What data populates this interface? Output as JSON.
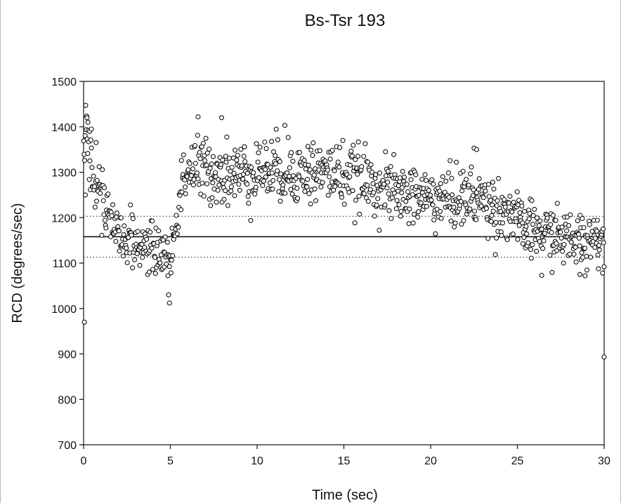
{
  "chart_data": {
    "type": "scatter",
    "title": "Bs-Tsr 193",
    "xlabel": "Time (sec)",
    "ylabel": "RCD (degrees/sec)",
    "xlim": [
      0,
      30
    ],
    "ylim": [
      700,
      1500
    ],
    "xticks": [
      0,
      5,
      10,
      15,
      20,
      25,
      30
    ],
    "yticks": [
      700,
      800,
      900,
      1000,
      1100,
      1200,
      1300,
      1400,
      1500
    ],
    "grid": false,
    "legend": "none",
    "reference_lines": [
      {
        "y": 1158,
        "style": "solid"
      },
      {
        "y": 1203,
        "style": "dotted"
      },
      {
        "y": 1113,
        "style": "dotted"
      }
    ],
    "anchors": [
      [
        0.0,
        1320
      ],
      [
        0.15,
        1380
      ],
      [
        0.35,
        1330
      ],
      [
        0.65,
        1290
      ],
      [
        1.0,
        1245
      ],
      [
        1.4,
        1205
      ],
      [
        2.0,
        1175
      ],
      [
        2.5,
        1150
      ],
      [
        3.0,
        1140
      ],
      [
        3.5,
        1135
      ],
      [
        4.0,
        1130
      ],
      [
        4.5,
        1125
      ],
      [
        4.9,
        1110
      ],
      [
        5.1,
        1120
      ],
      [
        5.4,
        1200
      ],
      [
        5.7,
        1290
      ],
      [
        6.0,
        1305
      ],
      [
        7.0,
        1305
      ],
      [
        8.0,
        1300
      ],
      [
        9.0,
        1295
      ],
      [
        10.0,
        1305
      ],
      [
        11.0,
        1305
      ],
      [
        12.0,
        1300
      ],
      [
        13.0,
        1300
      ],
      [
        14.0,
        1300
      ],
      [
        15.0,
        1295
      ],
      [
        16.0,
        1285
      ],
      [
        17.0,
        1270
      ],
      [
        18.0,
        1255
      ],
      [
        19.0,
        1250
      ],
      [
        20.0,
        1245
      ],
      [
        21.0,
        1240
      ],
      [
        22.0,
        1245
      ],
      [
        23.0,
        1240
      ],
      [
        24.0,
        1215
      ],
      [
        24.8,
        1210
      ],
      [
        25.2,
        1175
      ],
      [
        26.0,
        1170
      ],
      [
        27.0,
        1165
      ],
      [
        28.0,
        1150
      ],
      [
        29.0,
        1155
      ],
      [
        30.0,
        1160
      ]
    ],
    "spread_segments": [
      {
        "from": 0,
        "to": 1.5,
        "sd": 38
      },
      {
        "from": 1.5,
        "to": 5.5,
        "sd": 26
      },
      {
        "from": 5.5,
        "to": 15,
        "sd": 35
      },
      {
        "from": 15,
        "to": 25,
        "sd": 33
      },
      {
        "from": 25,
        "to": 30,
        "sd": 30
      }
    ],
    "outliers": [
      [
        0.05,
        970
      ],
      [
        0.1,
        1250
      ],
      [
        0.2,
        1420
      ],
      [
        0.25,
        1410
      ],
      [
        0.35,
        1390
      ],
      [
        0.45,
        1395
      ],
      [
        2.7,
        1228
      ],
      [
        4.9,
        1030
      ],
      [
        4.95,
        1012
      ],
      [
        6.6,
        1422
      ],
      [
        7.95,
        1420
      ],
      [
        11.6,
        1403
      ],
      [
        22.5,
        1353
      ],
      [
        22.65,
        1350
      ],
      [
        26.4,
        1073
      ],
      [
        28.6,
        1075
      ],
      [
        28.9,
        1072
      ],
      [
        30.0,
        1092
      ],
      [
        30.0,
        893
      ]
    ],
    "n_points": 1000,
    "x_step": 0.03
  }
}
